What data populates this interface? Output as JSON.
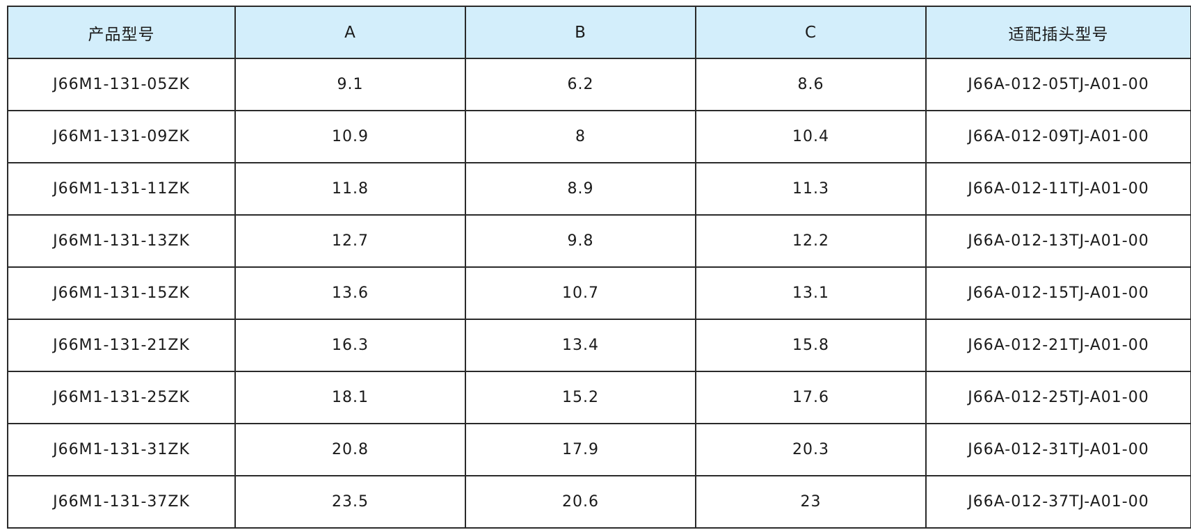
{
  "table": {
    "headers": [
      "产品型号",
      "A",
      "B",
      "C",
      "适配插头型号"
    ],
    "rows": [
      [
        "J66M1-131-05ZK",
        "9.1",
        "6.2",
        "8.6",
        "J66A-012-05TJ-A01-00"
      ],
      [
        "J66M1-131-09ZK",
        "10.9",
        "8",
        "10.4",
        "J66A-012-09TJ-A01-00"
      ],
      [
        "J66M1-131-11ZK",
        "11.8",
        "8.9",
        "11.3",
        "J66A-012-11TJ-A01-00"
      ],
      [
        "J66M1-131-13ZK",
        "12.7",
        "9.8",
        "12.2",
        "J66A-012-13TJ-A01-00"
      ],
      [
        "J66M1-131-15ZK",
        "13.6",
        "10.7",
        "13.1",
        "J66A-012-15TJ-A01-00"
      ],
      [
        "J66M1-131-21ZK",
        "16.3",
        "13.4",
        "15.8",
        "J66A-012-21TJ-A01-00"
      ],
      [
        "J66M1-131-25ZK",
        "18.1",
        "15.2",
        "17.6",
        "J66A-012-25TJ-A01-00"
      ],
      [
        "J66M1-131-31ZK",
        "20.8",
        "17.9",
        "20.3",
        "J66A-012-31TJ-A01-00"
      ],
      [
        "J66M1-131-37ZK",
        "23.5",
        "20.6",
        "23",
        "J66A-012-37TJ-A01-00"
      ]
    ]
  },
  "colors": {
    "header_background": "#d3eefb",
    "border": "#2a2a2a",
    "text": "#1a1a1a"
  }
}
